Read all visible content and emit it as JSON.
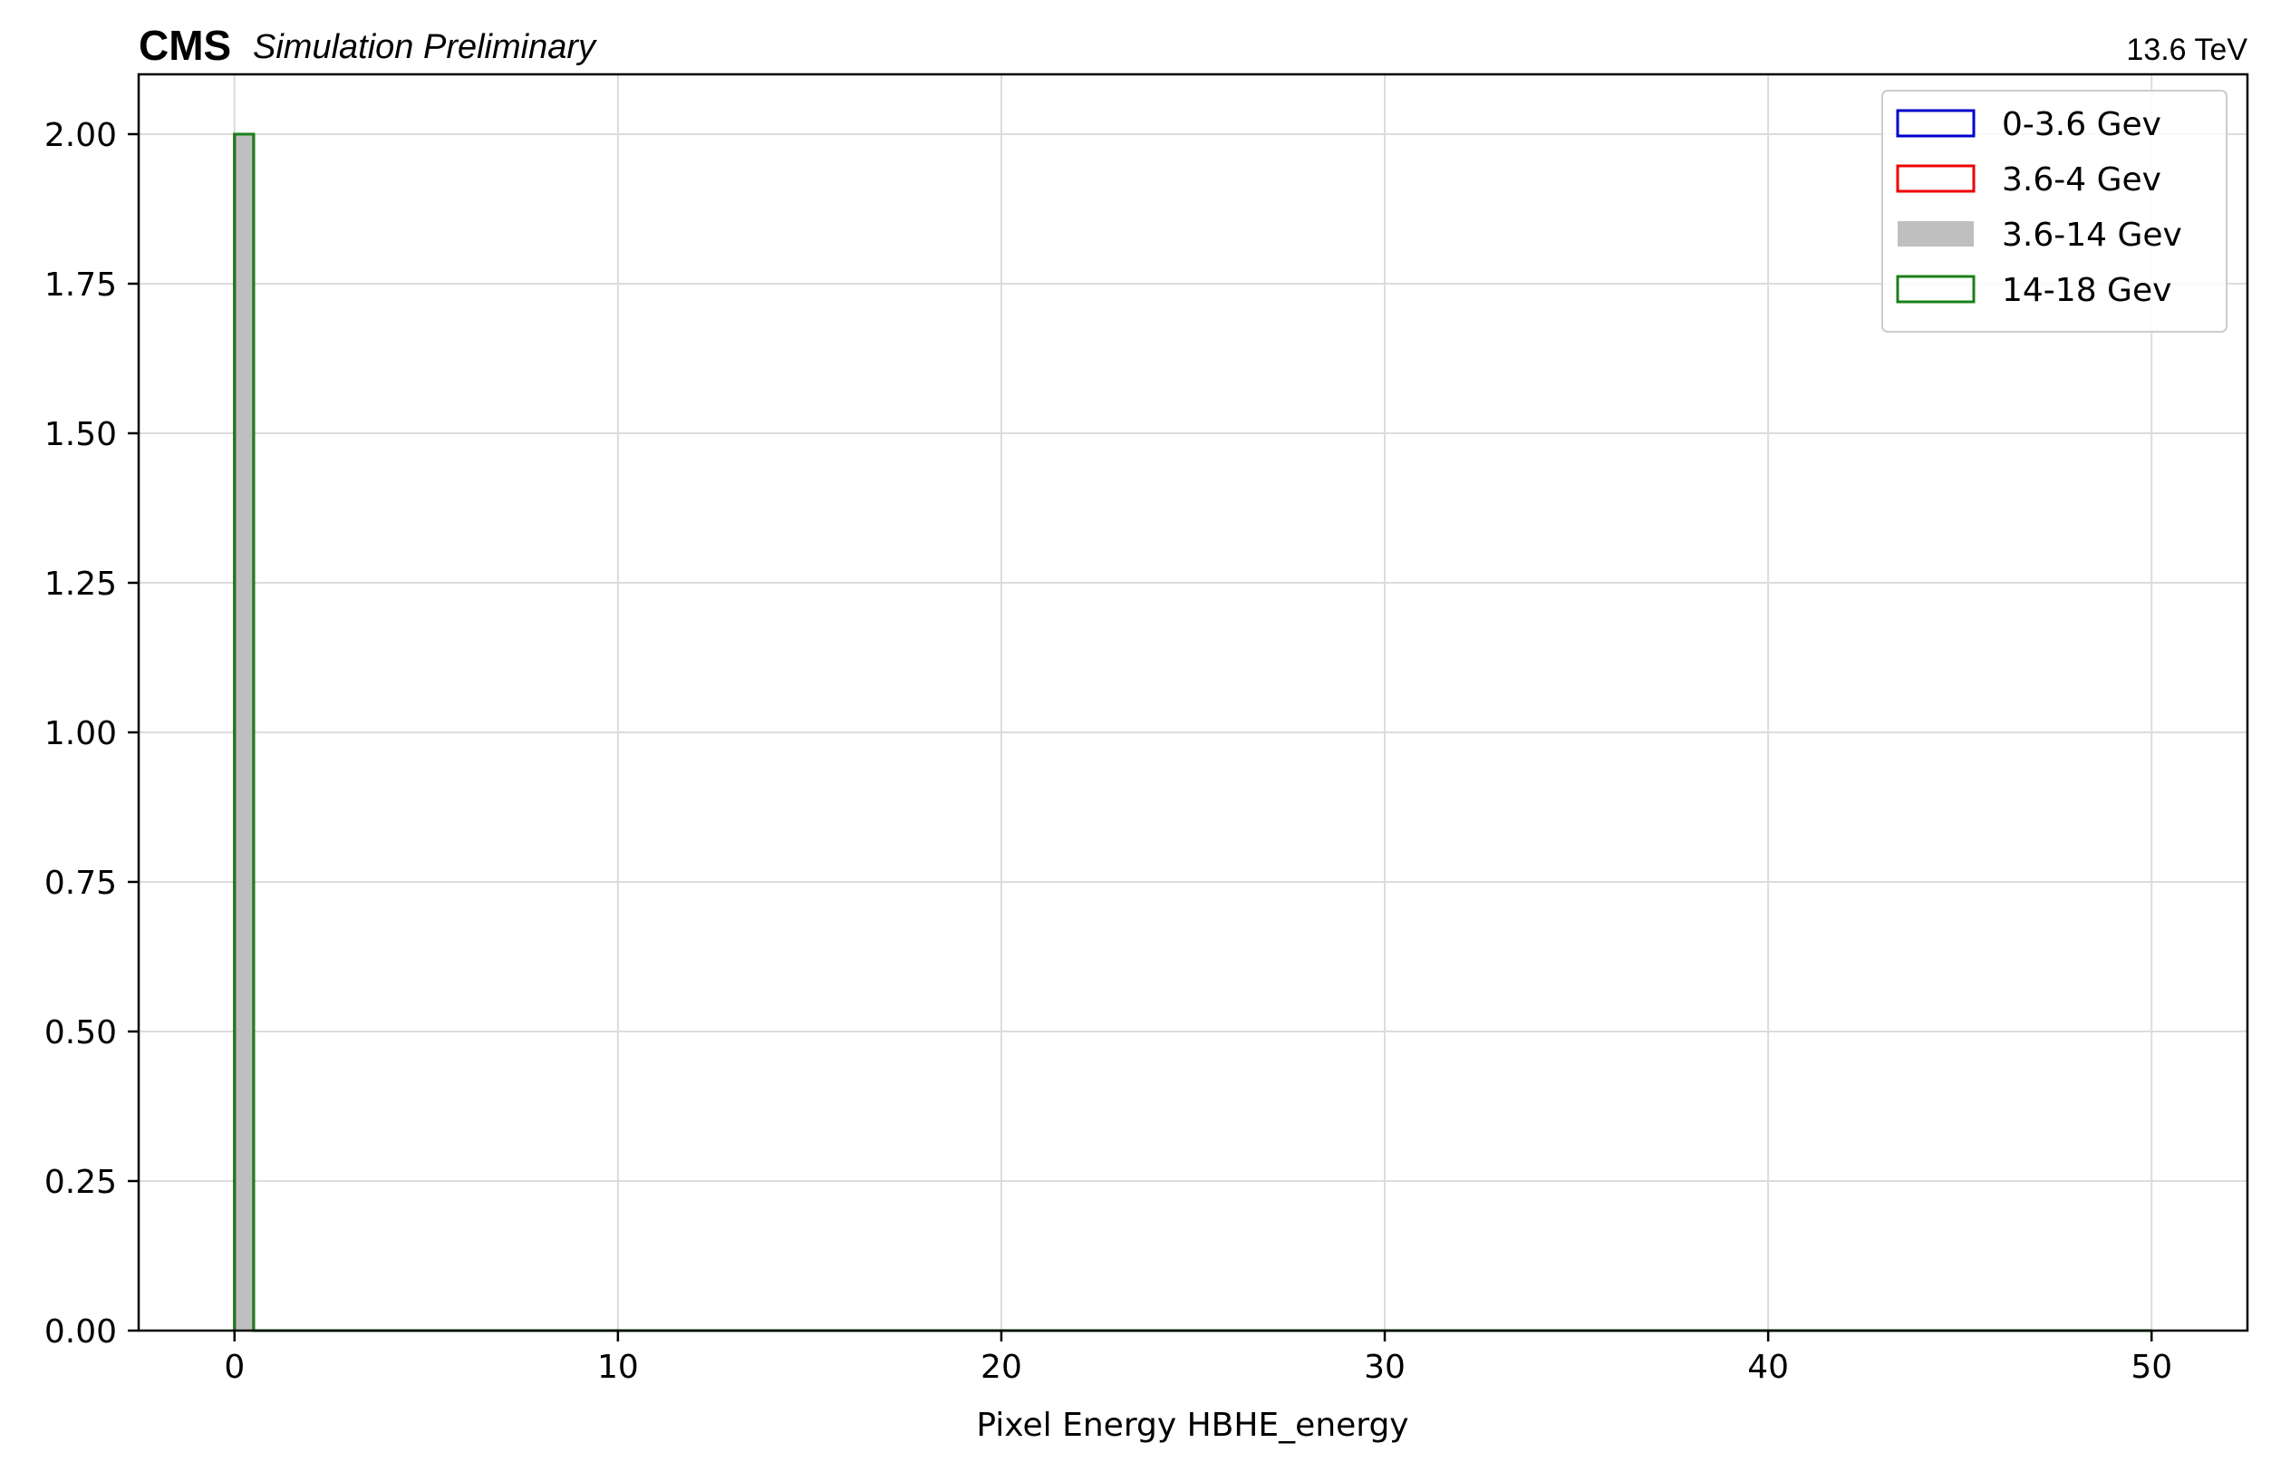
{
  "chart_data": {
    "type": "bar",
    "experiment_label": "CMS",
    "extra_label": "Simulation Preliminary",
    "energy_label": "13.6 TeV",
    "title": "",
    "xlabel": "Pixel Energy HBHE_energy",
    "ylabel": "",
    "xlim": [
      -2.5,
      52.5
    ],
    "ylim": [
      0,
      2.1
    ],
    "xticks": [
      0,
      10,
      20,
      30,
      40,
      50
    ],
    "xtick_labels": [
      "0",
      "10",
      "20",
      "30",
      "40",
      "50"
    ],
    "yticks": [
      0,
      0.25,
      0.5,
      0.75,
      1.0,
      1.25,
      1.5,
      1.75,
      2.0
    ],
    "ytick_labels": [
      "0.00",
      "0.25",
      "0.50",
      "0.75",
      "1.00",
      "1.25",
      "1.50",
      "1.75",
      "2.00"
    ],
    "grid": true,
    "legend_position": "top-right",
    "bin_edges": [
      0,
      0.5,
      1.0,
      50
    ],
    "series": [
      {
        "name": "0-3.6 Gev",
        "style": "step",
        "color": "#0000cc",
        "values": [
          2.0,
          0.0,
          0.0
        ]
      },
      {
        "name": "3.6-4 Gev",
        "style": "step",
        "color": "#ee0000",
        "values": [
          2.0,
          0.0,
          0.0
        ]
      },
      {
        "name": "3.6-14 Gev",
        "style": "filled",
        "color": "#bfbfbf",
        "values": [
          2.0,
          0.0,
          0.0
        ]
      },
      {
        "name": "14-18 Gev",
        "style": "step",
        "color": "#1a801a",
        "values": [
          2.0,
          0.0,
          0.0
        ]
      }
    ]
  }
}
